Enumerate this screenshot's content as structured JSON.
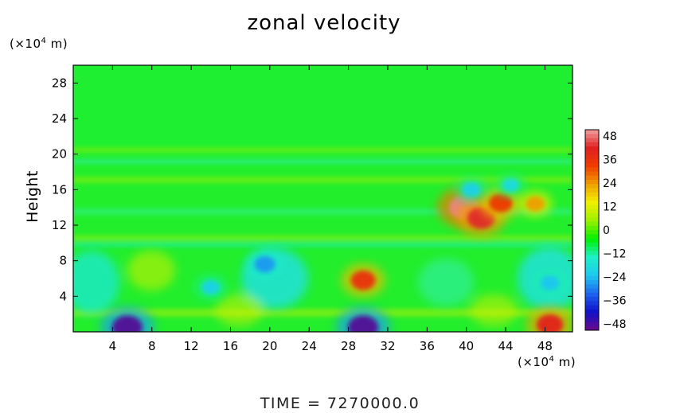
{
  "chart_data": {
    "type": "heatmap",
    "title": "zonal velocity",
    "ylabel": "Height",
    "y_unit_prefix": "(×10",
    "y_unit_exp": "4",
    "y_unit_suffix": " m)",
    "x_unit_prefix": "(×10",
    "x_unit_exp": "4",
    "x_unit_suffix": " m)",
    "xlim": [
      0,
      50.8
    ],
    "ylim": [
      0,
      30
    ],
    "x_ticks": [
      "4",
      "8",
      "12",
      "16",
      "20",
      "24",
      "28",
      "32",
      "36",
      "40",
      "44",
      "48"
    ],
    "y_ticks": [
      "4",
      "8",
      "12",
      "16",
      "20",
      "24",
      "28"
    ],
    "colorbar_ticks": [
      "48",
      "36",
      "24",
      "12",
      "0",
      "−12",
      "−24",
      "−36",
      "−48"
    ],
    "colorbar_range": [
      -48,
      48
    ],
    "colormap": [
      "#6a0a8a",
      "#1010c8",
      "#1e64f0",
      "#1ec8f0",
      "#1ef0c8",
      "#00f000",
      "#9bf000",
      "#f0f000",
      "#f0a000",
      "#f03c00",
      "#e02020",
      "#f0a0a0"
    ],
    "features": [
      {
        "x": 5.5,
        "y": 0.5,
        "value": -46
      },
      {
        "x": 29.5,
        "y": 0.5,
        "value": -46
      },
      {
        "x": 29.5,
        "y": 5.8,
        "value": 34
      },
      {
        "x": 48.5,
        "y": 0.8,
        "value": 38
      },
      {
        "x": 19.5,
        "y": 7.6,
        "value": -26
      },
      {
        "x": 48.5,
        "y": 5.5,
        "value": -22
      },
      {
        "x": 14.0,
        "y": 5.0,
        "value": -20
      },
      {
        "x": 39.8,
        "y": 14.0,
        "value": 46
      },
      {
        "x": 41.5,
        "y": 12.8,
        "value": 40
      },
      {
        "x": 43.5,
        "y": 14.5,
        "value": 32
      },
      {
        "x": 40.5,
        "y": 16.0,
        "value": -20
      },
      {
        "x": 44.5,
        "y": 16.5,
        "value": -18
      },
      {
        "x": 47.0,
        "y": 14.4,
        "value": 22
      }
    ],
    "time_label": "TIME",
    "time_value": "7270000.0"
  }
}
